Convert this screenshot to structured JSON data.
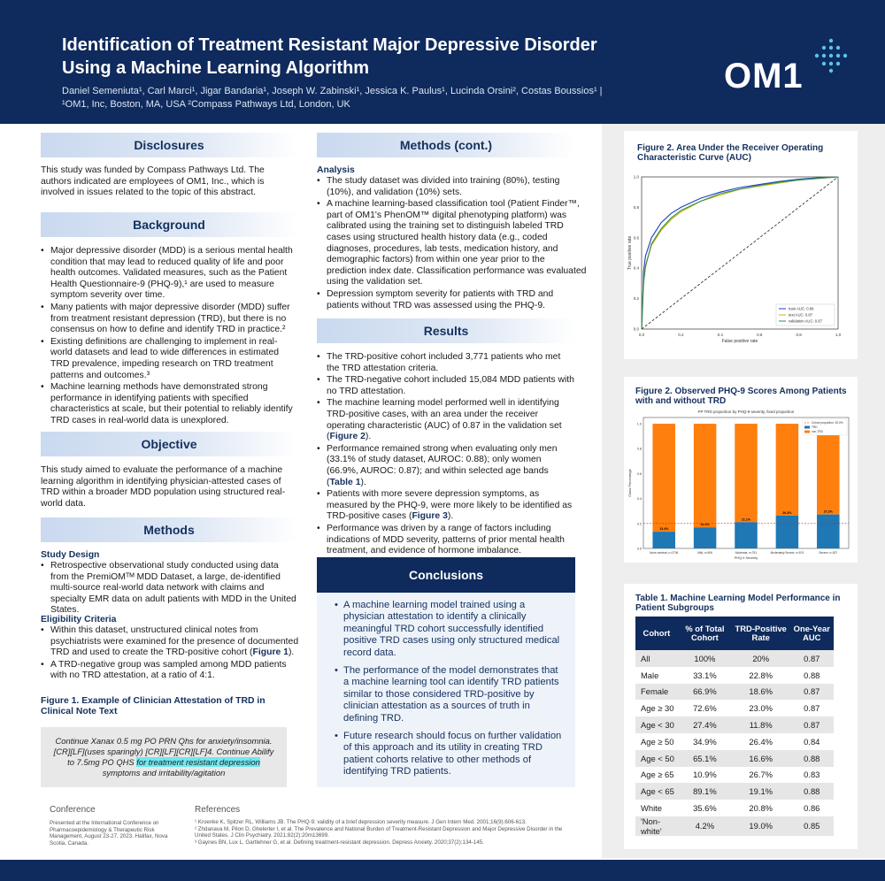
{
  "header": {
    "title_line1": "Identification of Treatment Resistant Major Depressive Disorder",
    "title_line2": "Using a Machine Learning Algorithm",
    "authors": "Daniel Semeniuta¹, Carl Marci¹, Jigar Bandaria¹, Joseph W. Zabinski¹, Jessica K. Paulus¹, Lucinda Orsini², Costas Boussios¹  |  ¹OM1, Inc, Boston, MA, USA   ²Compass Pathways Ltd, London, UK",
    "logo_text": "OM1",
    "brand_color": "#0f2a5c"
  },
  "disclosures": {
    "heading": "Disclosures",
    "text": "This study was funded by Compass Pathways Ltd.  The authors indicated are employees of OM1, Inc., which is involved in issues related to the topic of this abstract."
  },
  "background": {
    "heading": "Background",
    "bullets": [
      "Major depressive disorder (MDD) is a serious mental health condition that may lead to reduced quality of life and poor health outcomes. Validated measures, such as the Patient Health Questionnaire-9 (PHQ-9),¹ are used to measure symptom severity over time.",
      "Many patients with major depressive disorder (MDD) suffer from treatment resistant depression (TRD), but there is no consensus on how to define and identify TRD in practice.²",
      "Existing definitions are challenging to implement in real-world datasets and lead to wide differences in estimated TRD prevalence, impeding research on TRD treatment patterns and outcomes.³",
      "Machine learning methods have demonstrated strong performance in identifying patients with specified characteristics at scale, but their potential to reliably identify TRD cases in real-world data is unexplored."
    ]
  },
  "objective": {
    "heading": "Objective",
    "text": "This study aimed to evaluate the performance of a machine learning algorithm in identifying physician-attested cases of TRD within a broader MDD population using structured real-world data."
  },
  "methods": {
    "heading": "Methods",
    "study_design_heading": "Study Design",
    "study_design_bullets": [
      "Retrospective observational study conducted using data from the PremiOMᵀᴹ MDD Dataset, a large, de-identified multi-source real-world data network with claims and specialty EMR data on adult patients with MDD in the United States."
    ],
    "eligibility_heading": "Eligibility Criteria",
    "eligibility_bullet1_pre": "Within this dataset, unstructured clinical notes from psychiatrists were examined for the presence of documented TRD and used to create the TRD-positive cohort (",
    "eligibility_bullet1_ref": "Figure 1",
    "eligibility_bullet1_post": ").",
    "eligibility_bullet2": "A TRD-negative group was sampled among MDD patients with no TRD attestation, at a ratio of 4:1.",
    "figure1_title": "Figure 1. Example of Clinician Attestation of TRD in Clinical Note Text",
    "quote_line1": "Continue Xanax 0.5 mg PO PRN Qhs for anxiety/insomnia.",
    "quote_line2": "[CR][LF](uses sparingly)  [CR][LF][CR][LF]4. Continue Abilify",
    "quote_line3_pre": "to 7.5mg PO QHS ",
    "quote_line3_hl": "for treatment resistant depression",
    "quote_line4": "symptoms and irritability/agitation"
  },
  "methods_cont": {
    "heading": "Methods (cont.)",
    "analysis_heading": "Analysis",
    "bullets": [
      "The study dataset was divided into training (80%), testing (10%), and validation (10%) sets.",
      "A machine learning-based classification tool (Patient Finder™, part of OM1's PhenOM™ digital phenotyping platform) was calibrated using the training set to distinguish labeled TRD cases using structured health history data (e.g., coded diagnoses, procedures, lab tests, medication history, and demographic factors) from within one year prior to the prediction index date. Classification performance was evaluated using the validation set.",
      "Depression symptom severity for patients with TRD and patients without TRD was assessed using the PHQ-9."
    ]
  },
  "results": {
    "heading": "Results",
    "b1": "The TRD-positive cohort included 3,771 patients who met the TRD attestation criteria.",
    "b2": "The TRD-negative cohort included 15,084 MDD patients with no TRD attestation.",
    "b3_pre": "The machine learning model performed well in identifying TRD-positive cases, with an area under the receiver operating characteristic (AUC) of 0.87 in the validation set (",
    "b3_ref": "Figure 2",
    "b3_post": ").",
    "b4_pre": "Performance remained strong when evaluating only men (33.1% of study dataset, AUROC: 0.88); only women (66.9%, AUROC: 0.87); and within selected age bands (",
    "b4_ref": "Table 1",
    "b4_post": ").",
    "b5_pre": "Patients with more severe depression symptoms, as measured by the PHQ-9, were more likely to be identified as TRD-positive cases (",
    "b5_ref": "Figure 3",
    "b5_post": ").",
    "b6": "Performance was driven by a range of factors including indications of MDD severity, patterns of prior mental health treatment, and evidence of hormone imbalance."
  },
  "conclusions": {
    "heading": "Conclusions",
    "bullets": [
      "A machine learning model trained using a physician attestation to identify a clinically meaningful TRD cohort successfully identified positive TRD cases using only structured medical record data.",
      "The performance of the model demonstrates that a machine learning tool can identify TRD patients similar to those considered TRD-positive by clinician attestation as a sources of truth in defining TRD.",
      "Future research should focus on further validation of this approach and its utility in creating TRD patient cohorts relative to other methods of identifying TRD patients."
    ]
  },
  "figure2": {
    "title": "Figure 2. Area Under the Receiver Operating Characteristic Curve (AUC)",
    "xlabel": "False positive rate",
    "ylabel": "True positive rate",
    "ticks": [
      "0.0",
      "0.2",
      "0.4",
      "0.6",
      "0.8",
      "1.0"
    ],
    "legend": [
      "train AUC:        0.89",
      "test AUC:          0.87",
      "validation AUC:  0.87"
    ]
  },
  "figure3": {
    "title": "Figure 2. Observed PHQ-9 Scores Among Patients with and without TRD",
    "plot_title": "FP TRD proportion by PHQ-9 severity, fixed proportion",
    "xlabel": "PHQ-9 Severity",
    "ylabel": "Class Percentage",
    "legend": [
      "Cohort proportion: 20.0%",
      "TRD",
      "non-TRD"
    ],
    "yticks": [
      "0.0",
      "0.2",
      "0.4",
      "0.6",
      "0.8",
      "1.0"
    ]
  },
  "chart_data": [
    {
      "type": "line",
      "title": "Figure 2. Area Under the Receiver Operating Characteristic Curve (AUC)",
      "xlabel": "False positive rate",
      "ylabel": "True positive rate",
      "xlim": [
        0,
        1
      ],
      "ylim": [
        0,
        1
      ],
      "legend_position": "bottom-right",
      "series": [
        {
          "name": "train AUC: 0.89",
          "color": "#1f3fbf",
          "x": [
            0,
            0.01,
            0.02,
            0.05,
            0.1,
            0.15,
            0.2,
            0.3,
            0.4,
            0.5,
            0.6,
            0.7,
            0.8,
            0.9,
            1.0
          ],
          "y": [
            0,
            0.38,
            0.48,
            0.6,
            0.7,
            0.76,
            0.8,
            0.86,
            0.9,
            0.93,
            0.95,
            0.97,
            0.985,
            0.995,
            1.0
          ]
        },
        {
          "name": "test AUC: 0.87",
          "color": "#c8b400",
          "x": [
            0,
            0.01,
            0.02,
            0.05,
            0.1,
            0.15,
            0.2,
            0.3,
            0.4,
            0.5,
            0.6,
            0.7,
            0.8,
            0.9,
            1.0
          ],
          "y": [
            0,
            0.32,
            0.42,
            0.55,
            0.65,
            0.72,
            0.77,
            0.84,
            0.88,
            0.92,
            0.94,
            0.96,
            0.98,
            0.99,
            1.0
          ]
        },
        {
          "name": "validation AUC: 0.87",
          "color": "#2e8b57",
          "x": [
            0,
            0.01,
            0.02,
            0.05,
            0.1,
            0.15,
            0.2,
            0.3,
            0.4,
            0.5,
            0.6,
            0.7,
            0.8,
            0.9,
            1.0
          ],
          "y": [
            0,
            0.3,
            0.41,
            0.56,
            0.66,
            0.73,
            0.78,
            0.84,
            0.89,
            0.92,
            0.945,
            0.965,
            0.98,
            0.99,
            1.0
          ]
        }
      ]
    },
    {
      "type": "bar",
      "title": "FP TRD proportion by PHQ-9 severity, fixed proportion",
      "xlabel": "PHQ-9 Severity",
      "ylabel": "Class Percentage",
      "ylim": [
        0,
        1.05
      ],
      "categories": [
        "None-minimal, n=2706",
        "Mild, n=906",
        "Moderate, n=751",
        "Moderately Severe, n=574",
        "Severe, n=307"
      ],
      "reference_line": {
        "name": "Cohort proportion: 20.0%",
        "value": 0.2
      },
      "series": [
        {
          "name": "TRD",
          "color": "#1f77b4",
          "values": [
            0.134,
            0.169,
            0.211,
            0.263,
            0.272
          ],
          "labels": [
            "13.4%",
            "16.9%",
            "21.1%",
            "26.3%",
            "27.2%"
          ]
        },
        {
          "name": "non-TRD",
          "color": "#ff7f0e",
          "values": [
            0.866,
            0.831,
            0.789,
            0.737,
            0.728
          ]
        }
      ]
    }
  ],
  "table1": {
    "title": "Table 1. Machine Learning Model Performance in Patient Subgroups",
    "headers": [
      "Cohort",
      "% of Total Cohort",
      "TRD-Positive Rate",
      "One-Year AUC"
    ],
    "rows": [
      [
        "All",
        "100%",
        "20%",
        "0.87"
      ],
      [
        "Male",
        "33.1%",
        "22.8%",
        "0.88"
      ],
      [
        "Female",
        "66.9%",
        "18.6%",
        "0.87"
      ],
      [
        "Age ≥ 30",
        "72.6%",
        "23.0%",
        "0.87"
      ],
      [
        "Age < 30",
        "27.4%",
        "11.8%",
        "0.87"
      ],
      [
        "Age ≥ 50",
        "34.9%",
        "26.4%",
        "0.84"
      ],
      [
        "Age < 50",
        "65.1%",
        "16.6%",
        "0.88"
      ],
      [
        "Age ≥ 65",
        "10.9%",
        "26.7%",
        "0.83"
      ],
      [
        "Age < 65",
        "89.1%",
        "19.1%",
        "0.88"
      ],
      [
        "White",
        "35.6%",
        "20.8%",
        "0.86"
      ],
      [
        "'Non-white'",
        "4.2%",
        "19.0%",
        "0.85"
      ]
    ]
  },
  "footer": {
    "conference_heading": "Conference",
    "conference_text": "Presented at the International Conference on Pharmacoepidemiology & Therapeutic Risk Management, August 23-27, 2023. Halifax, Nova Scotia, Canada.",
    "references_heading": "References",
    "references": [
      "¹ Kroenke K, Spitzer RL, Williams JB. The PHQ-9: validity of a brief depression severity measure. J Gen Intern Med. 2001;16(9):606-613.",
      "² Zhdanava M, Pilon D, Ghelerter I, et al. The Prevalence and National Burden of Treatment-Resistant Depression and Major Depressive Disorder in the United States. J Clin Psychiatry. 2021;82(2):20m13699.",
      "³ Gaynes BN, Lux L, Gartlehner G, et al. Defining treatment-resistant depression. Depress Anxiety. 2020;37(2):134-145."
    ]
  }
}
